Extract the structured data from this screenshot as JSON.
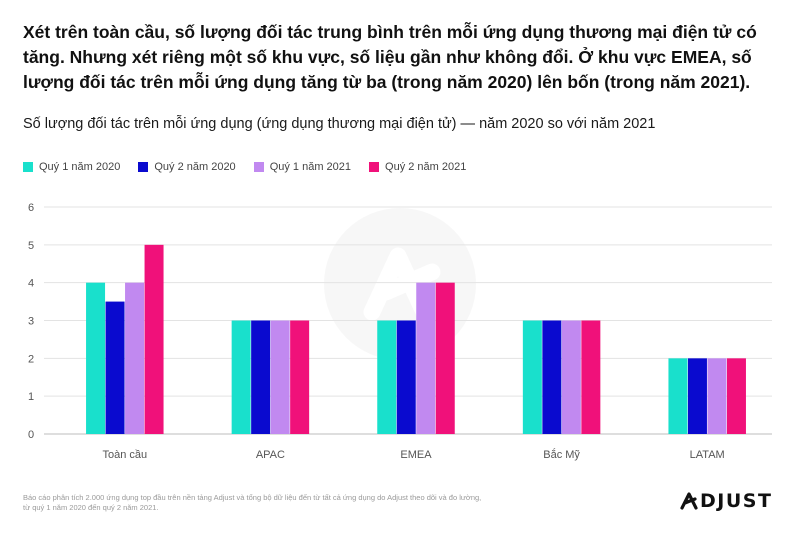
{
  "header": {
    "title": "Xét trên toàn cầu, số lượng đối tác trung bình trên mỗi ứng dụng thương mại điện tử có tăng. Nhưng xét riêng một số khu vực, số liệu gần như không đổi. Ở khu vực EMEA, số lượng đối tác trên mỗi ứng dụng tăng từ ba (trong năm 2020) lên bốn (trong năm 2021).",
    "subtitle": "Số lượng đối tác trên mỗi ứng dụng (ứng dụng thương mại điện tử) — năm 2020 so với năm 2021"
  },
  "chart_data": {
    "type": "bar",
    "title": "Số lượng đối tác trên mỗi ứng dụng (ứng dụng thương mại điện tử) — năm 2020 so với năm 2021",
    "xlabel": "",
    "ylabel": "",
    "ylim": [
      0,
      6
    ],
    "yticks": [
      0,
      1,
      2,
      3,
      4,
      5,
      6
    ],
    "grid": true,
    "legend_position": "top-left",
    "categories": [
      "Toàn cầu",
      "APAC",
      "EMEA",
      "Bắc Mỹ",
      "LATAM"
    ],
    "series": [
      {
        "name": "Quý 1 năm 2020",
        "color": "#19E0CC",
        "values": [
          4,
          3,
          3,
          3,
          2
        ]
      },
      {
        "name": "Quý 2 năm 2020",
        "color": "#0A0ACF",
        "values": [
          3.5,
          3,
          3,
          3,
          2
        ]
      },
      {
        "name": "Quý 1 năm 2021",
        "color": "#C189F0",
        "values": [
          4,
          3,
          4,
          3,
          2
        ]
      },
      {
        "name": "Quý 2 năm 2021",
        "color": "#F0117A",
        "values": [
          5,
          3,
          4,
          3,
          2
        ]
      }
    ]
  },
  "footnote": {
    "line1": "Báo cáo phân tích 2.000 ứng dụng top đầu trên nền tảng Adjust và tổng bộ dữ liệu đến từ tất cả ứng dụng do Adjust theo dõi và đo lường,",
    "line2": "từ quý 1 năm 2020 đến quý 2 năm 2021."
  },
  "logo": {
    "text": "DJUST",
    "icon": "adjust-logo-icon"
  },
  "watermark": {
    "icon": "adjust-watermark-icon"
  }
}
